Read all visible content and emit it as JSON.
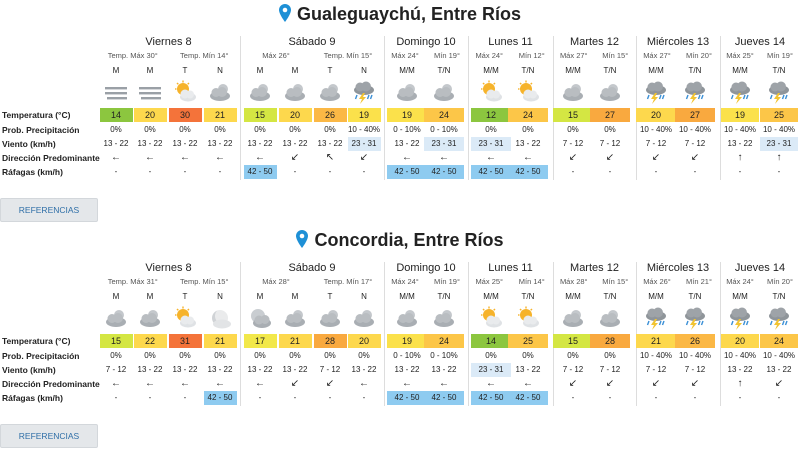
{
  "colors": {
    "t12": "#8cc63f",
    "t14": "#8cc63f",
    "t15": "#d4e643",
    "t17": "#f2e84a",
    "t19": "#fbe14b",
    "t20": "#fdd84d",
    "t21": "#fdd84d",
    "t22": "#fdd84d",
    "t24": "#fcc648",
    "t25": "#fcc648",
    "t26": "#fbb845",
    "t27": "#f9a93f",
    "t28": "#f9a93f",
    "t30": "#f4733a",
    "t31": "#f4733a",
    "wind_highlight": "#dbeaf7",
    "gust_highlight": "#8ecbf0",
    "button_text": "#2f6fa7"
  },
  "labels": {
    "temperature": "Temperatura (°C)",
    "prob": "Prob. Precipitación",
    "wind": "Viento (km/h)",
    "direction": "Dirección Predominante",
    "gusts": "Ráfagas (km/h)",
    "references_button": "REFERENCIAS"
  },
  "cities": [
    {
      "title": "Gualeguaychú, Entre Ríos",
      "days": [
        {
          "name": "Viernes 8",
          "range": [
            "Temp. Máx 30°",
            "Temp. Mín 14°"
          ],
          "slots": [
            "M",
            "M",
            "T",
            "N"
          ]
        },
        {
          "name": "Sábado 9",
          "range": [
            "Máx 26°",
            "Temp. Mín 15°"
          ],
          "slots": [
            "M",
            "M",
            "T",
            "N"
          ]
        },
        {
          "name": "Domingo 10",
          "range": [
            "Máx 24°",
            "Mín 19°"
          ],
          "slots": [
            "M/M",
            "T/N"
          ]
        },
        {
          "name": "Lunes 11",
          "range": [
            "Máx 24°",
            "Mín 12°"
          ],
          "slots": [
            "M/M",
            "T/N"
          ]
        },
        {
          "name": "Martes 12",
          "range": [
            "Máx 27°",
            "Mín 15°"
          ],
          "slots": [
            "M/M",
            "T/N"
          ]
        },
        {
          "name": "Miércoles 13",
          "range": [
            "Máx 27°",
            "Mín 20°"
          ],
          "slots": [
            "M/M",
            "T/N"
          ]
        },
        {
          "name": "Jueves 14",
          "range": [
            "Máx 25°",
            "Mín 19°"
          ],
          "slots": [
            "M/M",
            "T/N"
          ]
        }
      ],
      "periods": [
        {
          "icon": "fog-icon",
          "temp": "14",
          "prob": "0%",
          "wind": "13 - 22",
          "dir": "←",
          "gust": "-"
        },
        {
          "icon": "fog-icon",
          "temp": "20",
          "prob": "0%",
          "wind": "13 - 22",
          "dir": "←",
          "gust": "-"
        },
        {
          "icon": "sun-cloud-icon",
          "temp": "30",
          "prob": "0%",
          "wind": "13 - 22",
          "dir": "←",
          "gust": "-"
        },
        {
          "icon": "cloudy-icon",
          "temp": "21",
          "prob": "0%",
          "wind": "13 - 22",
          "dir": "←",
          "gust": "-"
        },
        {
          "icon": "cloudy-icon",
          "temp": "15",
          "prob": "0%",
          "wind": "13 - 22",
          "dir": "←",
          "gust": "42 - 50",
          "gust_hl": true
        },
        {
          "icon": "cloudy-icon",
          "temp": "20",
          "prob": "0%",
          "wind": "13 - 22",
          "dir": "↙",
          "gust": "-"
        },
        {
          "icon": "cloudy-icon",
          "temp": "26",
          "prob": "0%",
          "wind": "13 - 22",
          "dir": "↖",
          "gust": "-"
        },
        {
          "icon": "storm-icon",
          "temp": "19",
          "prob": "10 - 40%",
          "wind": "23 - 31",
          "wind_hl": true,
          "dir": "↙",
          "gust": "-"
        },
        {
          "icon": "cloudy-icon",
          "temp": "19",
          "prob": "0 - 10%",
          "wind": "13 - 22",
          "dir": "←",
          "gust": "42 - 50",
          "gust_hl": true
        },
        {
          "icon": "cloudy-icon",
          "temp": "24",
          "prob": "0 - 10%",
          "wind": "23 - 31",
          "wind_hl": true,
          "dir": "←",
          "gust": "42 - 50",
          "gust_hl": true
        },
        {
          "icon": "sun-cloud-icon",
          "temp": "12",
          "prob": "0%",
          "wind": "23 - 31",
          "wind_hl": true,
          "dir": "←",
          "gust": "42 - 50",
          "gust_hl": true
        },
        {
          "icon": "sun-cloud-icon",
          "temp": "24",
          "prob": "0%",
          "wind": "13 - 22",
          "dir": "←",
          "gust": "42 - 50",
          "gust_hl": true
        },
        {
          "icon": "cloudy-icon",
          "temp": "15",
          "prob": "0%",
          "wind": "7 - 12",
          "dir": "↙",
          "gust": "-"
        },
        {
          "icon": "cloudy-icon",
          "temp": "27",
          "prob": "0%",
          "wind": "7 - 12",
          "dir": "↙",
          "gust": "-"
        },
        {
          "icon": "storm-icon",
          "temp": "20",
          "prob": "10 - 40%",
          "wind": "7 - 12",
          "dir": "↙",
          "gust": "-"
        },
        {
          "icon": "storm-icon",
          "temp": "27",
          "prob": "10 - 40%",
          "wind": "7 - 12",
          "dir": "↙",
          "gust": "-"
        },
        {
          "icon": "storm-icon",
          "temp": "19",
          "prob": "10 - 40%",
          "wind": "13 - 22",
          "dir": "↑",
          "gust": "-"
        },
        {
          "icon": "storm-icon",
          "temp": "25",
          "prob": "10 - 40%",
          "wind": "23 - 31",
          "wind_hl": true,
          "dir": "↑",
          "gust": "-"
        }
      ]
    },
    {
      "title": "Concordia, Entre Ríos",
      "days": [
        {
          "name": "Viernes 8",
          "range": [
            "Temp. Máx 31°",
            "Temp. Mín 15°"
          ],
          "slots": [
            "M",
            "M",
            "T",
            "N"
          ]
        },
        {
          "name": "Sábado 9",
          "range": [
            "Máx 28°",
            "Temp. Mín 17°"
          ],
          "slots": [
            "M",
            "M",
            "T",
            "N"
          ]
        },
        {
          "name": "Domingo 10",
          "range": [
            "Máx 24°",
            "Mín 19°"
          ],
          "slots": [
            "M/M",
            "T/N"
          ]
        },
        {
          "name": "Lunes 11",
          "range": [
            "Máx 25°",
            "Mín 14°"
          ],
          "slots": [
            "M/M",
            "T/N"
          ]
        },
        {
          "name": "Martes 12",
          "range": [
            "Máx 28°",
            "Mín 15°"
          ],
          "slots": [
            "M/M",
            "T/N"
          ]
        },
        {
          "name": "Miércoles 13",
          "range": [
            "Máx 26°",
            "Mín 21°"
          ],
          "slots": [
            "M/M",
            "T/N"
          ]
        },
        {
          "name": "Jueves 14",
          "range": [
            "Máx 24°",
            "Mín 20°"
          ],
          "slots": [
            "M/M",
            "T/N"
          ]
        }
      ],
      "periods": [
        {
          "icon": "cloudy-icon",
          "temp": "15",
          "prob": "0%",
          "wind": "7 - 12",
          "dir": "←",
          "gust": "-"
        },
        {
          "icon": "cloudy-icon",
          "temp": "22",
          "prob": "0%",
          "wind": "13 - 22",
          "dir": "←",
          "gust": "-"
        },
        {
          "icon": "sun-cloud-icon",
          "temp": "31",
          "prob": "0%",
          "wind": "13 - 22",
          "dir": "←",
          "gust": "-"
        },
        {
          "icon": "moon-icon",
          "temp": "21",
          "prob": "0%",
          "wind": "13 - 22",
          "dir": "←",
          "gust": "42 - 50",
          "gust_hl": true
        },
        {
          "icon": "moon-cloud-icon",
          "temp": "17",
          "prob": "0%",
          "wind": "13 - 22",
          "dir": "←",
          "gust": "-"
        },
        {
          "icon": "cloudy-icon",
          "temp": "21",
          "prob": "0%",
          "wind": "13 - 22",
          "dir": "↙",
          "gust": "-"
        },
        {
          "icon": "cloudy-icon",
          "temp": "28",
          "prob": "0%",
          "wind": "7 - 12",
          "dir": "↙",
          "gust": "-"
        },
        {
          "icon": "cloudy-icon",
          "temp": "20",
          "prob": "0%",
          "wind": "13 - 22",
          "dir": "←",
          "gust": "-"
        },
        {
          "icon": "cloudy-icon",
          "temp": "19",
          "prob": "0 - 10%",
          "wind": "13 - 22",
          "dir": "←",
          "gust": "42 - 50",
          "gust_hl": true
        },
        {
          "icon": "cloudy-icon",
          "temp": "24",
          "prob": "0 - 10%",
          "wind": "13 - 22",
          "dir": "←",
          "gust": "42 - 50",
          "gust_hl": true
        },
        {
          "icon": "sun-cloud-icon",
          "temp": "14",
          "prob": "0%",
          "wind": "23 - 31",
          "wind_hl": true,
          "dir": "←",
          "gust": "42 - 50",
          "gust_hl": true
        },
        {
          "icon": "sun-cloud-icon",
          "temp": "25",
          "prob": "0%",
          "wind": "13 - 22",
          "dir": "←",
          "gust": "42 - 50",
          "gust_hl": true
        },
        {
          "icon": "cloudy-icon",
          "temp": "15",
          "prob": "0%",
          "wind": "7 - 12",
          "dir": "↙",
          "gust": "-"
        },
        {
          "icon": "cloudy-icon",
          "temp": "28",
          "prob": "0%",
          "wind": "7 - 12",
          "dir": "↙",
          "gust": "-"
        },
        {
          "icon": "storm-icon",
          "temp": "21",
          "prob": "10 - 40%",
          "wind": "7 - 12",
          "dir": "↙",
          "gust": "-"
        },
        {
          "icon": "storm-icon",
          "temp": "26",
          "prob": "10 - 40%",
          "wind": "7 - 12",
          "dir": "↙",
          "gust": "-"
        },
        {
          "icon": "storm-icon",
          "temp": "20",
          "prob": "10 - 40%",
          "wind": "13 - 22",
          "dir": "↑",
          "gust": "-"
        },
        {
          "icon": "storm-icon",
          "temp": "24",
          "prob": "10 - 40%",
          "wind": "13 - 22",
          "dir": "↙",
          "gust": "-"
        }
      ]
    }
  ]
}
